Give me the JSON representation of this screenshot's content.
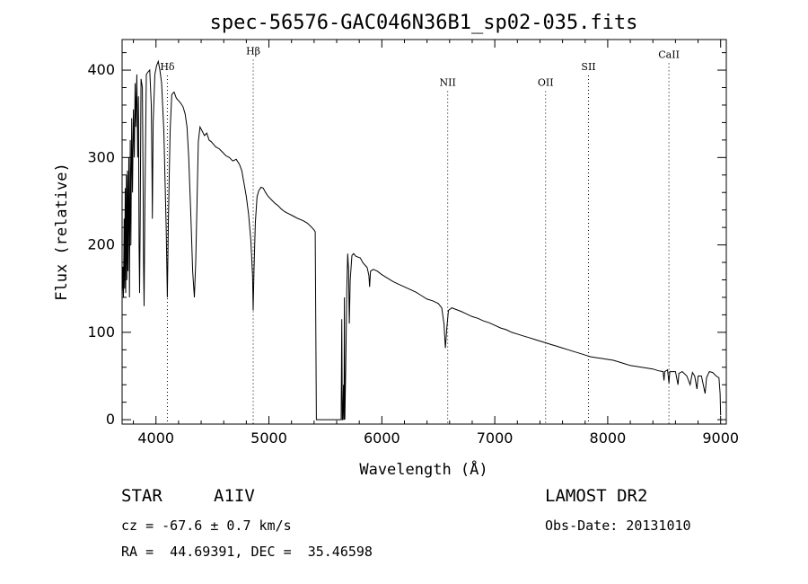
{
  "chart_data": {
    "type": "line",
    "title": "spec-56576-GAC046N36B1_sp02-035.fits",
    "xlabel": "Wavelength (Å)",
    "ylabel": "Flux (relative)",
    "xlim": [
      3700,
      9050
    ],
    "ylim": [
      -5,
      435
    ],
    "xticks": [
      4000,
      5000,
      6000,
      7000,
      8000,
      9000
    ],
    "yticks": [
      0,
      100,
      200,
      300,
      400
    ],
    "grid": false,
    "series": [
      {
        "values": [
          [
            3700,
            140
          ],
          [
            3708,
            175
          ],
          [
            3712,
            140
          ],
          [
            3718,
            230
          ],
          [
            3722,
            150
          ],
          [
            3728,
            265
          ],
          [
            3732,
            145
          ],
          [
            3738,
            280
          ],
          [
            3742,
            160
          ],
          [
            3748,
            285
          ],
          [
            3752,
            170
          ],
          [
            3760,
            300
          ],
          [
            3765,
            140
          ],
          [
            3772,
            320
          ],
          [
            3778,
            200
          ],
          [
            3785,
            345
          ],
          [
            3792,
            260
          ],
          [
            3800,
            355
          ],
          [
            3808,
            300
          ],
          [
            3815,
            385
          ],
          [
            3822,
            335
          ],
          [
            3830,
            395
          ],
          [
            3838,
            300
          ],
          [
            3845,
            370
          ],
          [
            3850,
            200
          ],
          [
            3855,
            145
          ],
          [
            3860,
            220
          ],
          [
            3868,
            390
          ],
          [
            3880,
            380
          ],
          [
            3888,
            240
          ],
          [
            3890,
            180
          ],
          [
            3895,
            130
          ],
          [
            3902,
            250
          ],
          [
            3915,
            395
          ],
          [
            3930,
            398
          ],
          [
            3945,
            400
          ],
          [
            3958,
            360
          ],
          [
            3965,
            285
          ],
          [
            3968,
            230
          ],
          [
            3975,
            340
          ],
          [
            3990,
            395
          ],
          [
            4005,
            405
          ],
          [
            4020,
            410
          ],
          [
            4035,
            400
          ],
          [
            4050,
            385
          ],
          [
            4070,
            330
          ],
          [
            4090,
            220
          ],
          [
            4101,
            140
          ],
          [
            4110,
            230
          ],
          [
            4125,
            330
          ],
          [
            4140,
            372
          ],
          [
            4160,
            375
          ],
          [
            4180,
            368
          ],
          [
            4200,
            365
          ],
          [
            4220,
            362
          ],
          [
            4240,
            358
          ],
          [
            4258,
            350
          ],
          [
            4275,
            335
          ],
          [
            4290,
            300
          ],
          [
            4310,
            230
          ],
          [
            4325,
            170
          ],
          [
            4340,
            140
          ],
          [
            4352,
            180
          ],
          [
            4365,
            260
          ],
          [
            4375,
            318
          ],
          [
            4390,
            335
          ],
          [
            4410,
            330
          ],
          [
            4430,
            325
          ],
          [
            4450,
            328
          ],
          [
            4470,
            320
          ],
          [
            4490,
            318
          ],
          [
            4510,
            315
          ],
          [
            4530,
            312
          ],
          [
            4560,
            310
          ],
          [
            4590,
            306
          ],
          [
            4620,
            302
          ],
          [
            4650,
            300
          ],
          [
            4680,
            296
          ],
          [
            4710,
            298
          ],
          [
            4740,
            292
          ],
          [
            4760,
            285
          ],
          [
            4780,
            270
          ],
          [
            4800,
            255
          ],
          [
            4820,
            235
          ],
          [
            4840,
            205
          ],
          [
            4855,
            165
          ],
          [
            4861,
            125
          ],
          [
            4868,
            170
          ],
          [
            4880,
            225
          ],
          [
            4895,
            255
          ],
          [
            4910,
            262
          ],
          [
            4930,
            266
          ],
          [
            4950,
            265
          ],
          [
            4970,
            260
          ],
          [
            4990,
            256
          ],
          [
            5020,
            252
          ],
          [
            5050,
            248
          ],
          [
            5080,
            245
          ],
          [
            5110,
            241
          ],
          [
            5140,
            238
          ],
          [
            5170,
            236
          ],
          [
            5200,
            234
          ],
          [
            5230,
            232
          ],
          [
            5260,
            230
          ],
          [
            5300,
            228
          ],
          [
            5340,
            225
          ],
          [
            5380,
            220
          ],
          [
            5400,
            217
          ],
          [
            5410,
            215
          ],
          [
            5420,
            0
          ],
          [
            5640,
            0
          ],
          [
            5645,
            115
          ],
          [
            5650,
            0
          ],
          [
            5655,
            0
          ],
          [
            5660,
            40
          ],
          [
            5665,
            0
          ],
          [
            5668,
            140
          ],
          [
            5672,
            0
          ],
          [
            5680,
            60
          ],
          [
            5690,
            150
          ],
          [
            5698,
            190
          ],
          [
            5706,
            170
          ],
          [
            5712,
            110
          ],
          [
            5720,
            160
          ],
          [
            5735,
            188
          ],
          [
            5750,
            190
          ],
          [
            5770,
            187
          ],
          [
            5790,
            186
          ],
          [
            5810,
            185
          ],
          [
            5830,
            180
          ],
          [
            5850,
            177
          ],
          [
            5870,
            174
          ],
          [
            5885,
            165
          ],
          [
            5892,
            152
          ],
          [
            5900,
            170
          ],
          [
            5925,
            172
          ],
          [
            5960,
            170
          ],
          [
            6000,
            166
          ],
          [
            6050,
            162
          ],
          [
            6100,
            158
          ],
          [
            6150,
            155
          ],
          [
            6200,
            152
          ],
          [
            6250,
            149
          ],
          [
            6300,
            146
          ],
          [
            6350,
            142
          ],
          [
            6400,
            138
          ],
          [
            6450,
            136
          ],
          [
            6500,
            133
          ],
          [
            6530,
            128
          ],
          [
            6550,
            110
          ],
          [
            6563,
            82
          ],
          [
            6575,
            105
          ],
          [
            6590,
            125
          ],
          [
            6620,
            128
          ],
          [
            6660,
            126
          ],
          [
            6700,
            124
          ],
          [
            6750,
            121
          ],
          [
            6800,
            118
          ],
          [
            6850,
            116
          ],
          [
            6900,
            113
          ],
          [
            6950,
            111
          ],
          [
            7000,
            108
          ],
          [
            7050,
            105
          ],
          [
            7100,
            103
          ],
          [
            7150,
            100
          ],
          [
            7200,
            98
          ],
          [
            7250,
            96
          ],
          [
            7300,
            94
          ],
          [
            7350,
            92
          ],
          [
            7400,
            90
          ],
          [
            7450,
            88
          ],
          [
            7500,
            86
          ],
          [
            7550,
            84
          ],
          [
            7600,
            82
          ],
          [
            7650,
            80
          ],
          [
            7700,
            78
          ],
          [
            7750,
            76
          ],
          [
            7800,
            74
          ],
          [
            7850,
            72
          ],
          [
            7900,
            71
          ],
          [
            7950,
            70
          ],
          [
            8000,
            69
          ],
          [
            8050,
            68
          ],
          [
            8100,
            66
          ],
          [
            8150,
            64
          ],
          [
            8200,
            62
          ],
          [
            8250,
            61
          ],
          [
            8300,
            60
          ],
          [
            8350,
            59
          ],
          [
            8400,
            58
          ],
          [
            8450,
            56
          ],
          [
            8490,
            55
          ],
          [
            8498,
            45
          ],
          [
            8505,
            55
          ],
          [
            8530,
            57
          ],
          [
            8542,
            42
          ],
          [
            8550,
            55
          ],
          [
            8580,
            55
          ],
          [
            8600,
            55
          ],
          [
            8622,
            40
          ],
          [
            8630,
            53
          ],
          [
            8660,
            55
          ],
          [
            8700,
            50
          ],
          [
            8730,
            40
          ],
          [
            8750,
            54
          ],
          [
            8770,
            50
          ],
          [
            8790,
            35
          ],
          [
            8800,
            50
          ],
          [
            8830,
            50
          ],
          [
            8862,
            30
          ],
          [
            8875,
            48
          ],
          [
            8900,
            55
          ],
          [
            8930,
            54
          ],
          [
            8960,
            50
          ],
          [
            8985,
            48
          ],
          [
            8995,
            30
          ],
          [
            9000,
            5
          ]
        ]
      }
    ],
    "annotations": [
      {
        "label": "Hδ",
        "x": 4101,
        "y": 400
      },
      {
        "label": "Hβ",
        "x": 4861,
        "y": 418
      },
      {
        "label": "NII",
        "x": 6583,
        "y": 382
      },
      {
        "label": "OII",
        "x": 7450,
        "y": 382
      },
      {
        "label": "SII",
        "x": 7830,
        "y": 400
      },
      {
        "label": "CaII",
        "x": 8542,
        "y": 414
      }
    ]
  },
  "info": {
    "star_label": "STAR",
    "star_type": "A1IV",
    "survey": "LAMOST DR2",
    "cz": "cz = -67.6 ± 0.7 km/s",
    "obs_date": "Obs-Date: 20131010",
    "coords": "RA =  44.69391, DEC =  35.46598"
  }
}
